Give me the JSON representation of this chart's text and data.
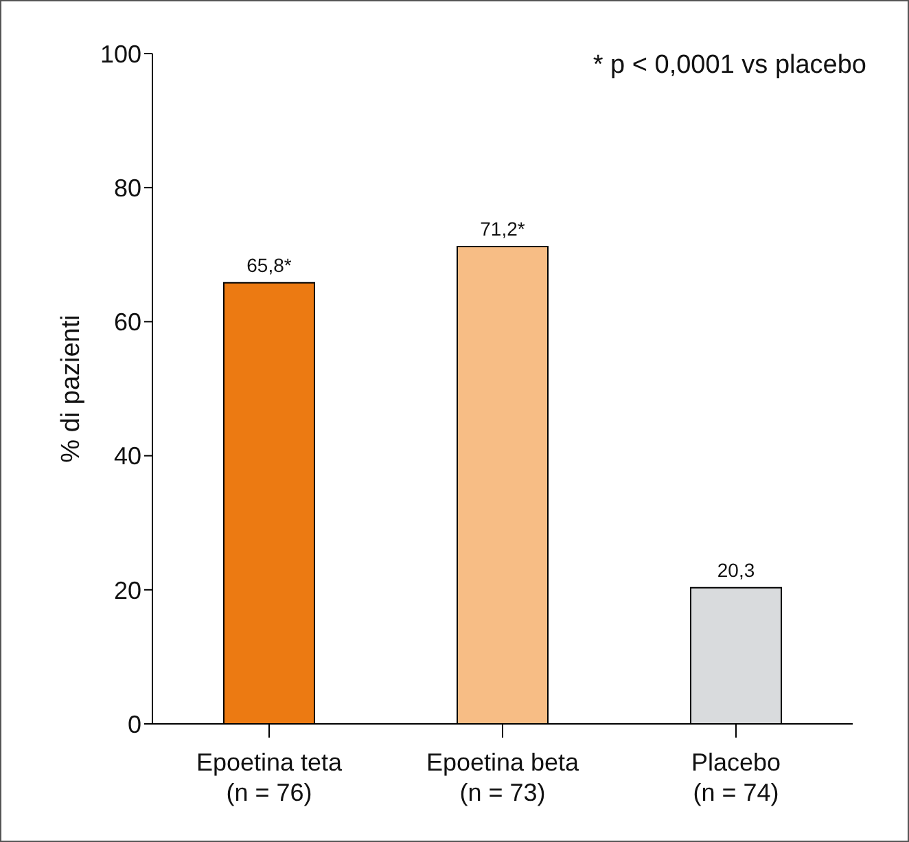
{
  "chart_data": {
    "type": "bar",
    "ylabel": "% di pazienti",
    "categories": [
      "Epoetina teta\n(n = 76)",
      "Epoetina beta\n(n = 73)",
      "Placebo\n(n = 74)"
    ],
    "values": [
      65.8,
      71.2,
      20.3
    ],
    "value_labels": [
      "65,8*",
      "71,2*",
      "20,3"
    ],
    "colors": [
      "#ec7a12",
      "#f7bd85",
      "#d9dbdd"
    ],
    "ylim": [
      0,
      100
    ],
    "yticks": [
      0,
      20,
      40,
      60,
      80,
      100
    ],
    "annotations": [
      "* p < 0,0001 vs placebo"
    ]
  }
}
